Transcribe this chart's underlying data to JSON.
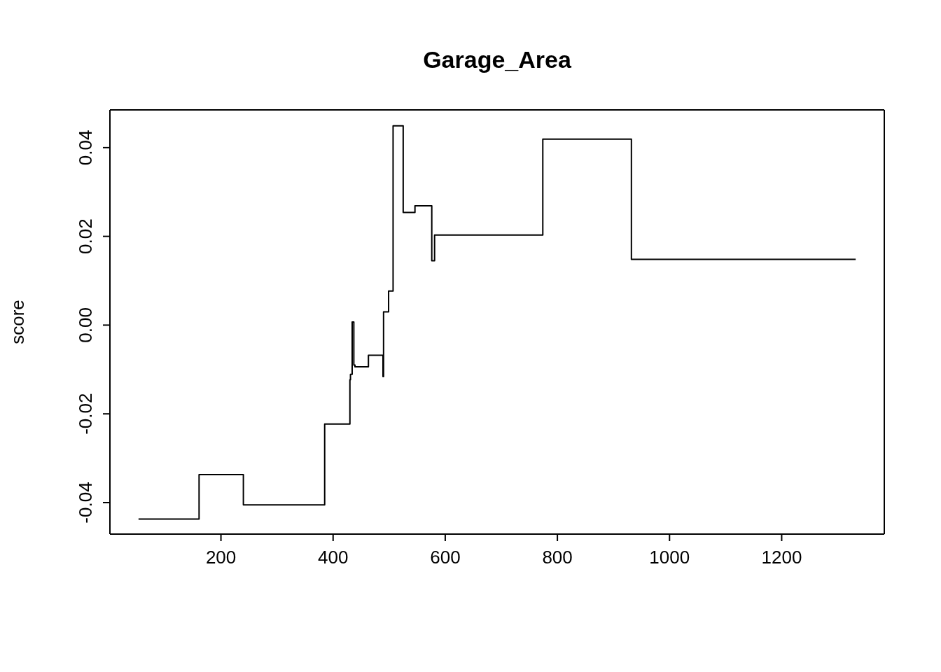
{
  "chart_data": {
    "type": "step",
    "title": "Garage_Area",
    "ylabel": "score",
    "x": [
      53,
      161,
      240,
      385,
      430,
      431,
      434,
      437,
      439,
      463,
      489,
      490,
      499,
      507,
      525,
      546,
      576,
      581,
      774,
      932,
      1332
    ],
    "series": [
      {
        "color": "#000000",
        "values": [
          -0.0437,
          -0.0337,
          -0.0405,
          -0.0223,
          -0.0123,
          -0.0111,
          0.0007,
          -0.009,
          -0.0094,
          -0.0068,
          -0.0116,
          0.003,
          0.0077,
          0.0449,
          0.0254,
          0.0269,
          0.0145,
          0.0203,
          0.0419,
          0.0148,
          0.0148
        ]
      }
    ],
    "xlim": [
      2,
      1383
    ],
    "xticks": [
      200,
      400,
      600,
      800,
      1000,
      1200
    ],
    "ylim": [
      -0.0471,
      0.0485
    ],
    "yticks": [
      -0.04,
      -0.02,
      {
        "value": 0,
        "label": "0.00"
      },
      0.02,
      0.04
    ],
    "marker": "none",
    "line_style": "solid"
  }
}
